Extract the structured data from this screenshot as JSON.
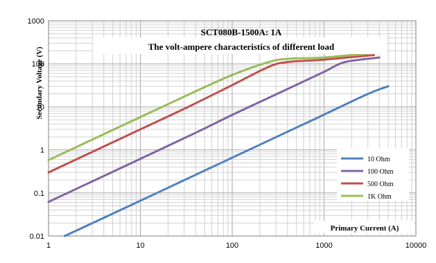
{
  "chart_data": {
    "type": "line",
    "title": "SCT080B-1500A: 1A",
    "subtitle": "The volt-ampere characteristics of different load",
    "xlabel": "Primary Current (A)",
    "ylabel": "Secondary Voltage (V)",
    "x_scale": "log",
    "y_scale": "log",
    "xlim": [
      1,
      10000
    ],
    "ylim": [
      0.01,
      1000
    ],
    "x_ticks": [
      "1",
      "10",
      "100",
      "1000",
      "10000"
    ],
    "y_ticks": [
      "0.01",
      "0.1",
      "1",
      "10",
      "100",
      "1000"
    ],
    "grid": true,
    "legend_position": "right",
    "series": [
      {
        "name": "10 Ohm",
        "color": "#4f81bd",
        "x": [
          1.5,
          10,
          50,
          100,
          500,
          1000,
          3000,
          5000
        ],
        "y": [
          0.01,
          0.066,
          0.33,
          0.66,
          3.3,
          6.6,
          20,
          30
        ]
      },
      {
        "name": "100 Ohm",
        "color": "#8064a2",
        "x": [
          1,
          10,
          40,
          100,
          400,
          1000,
          1700,
          4000
        ],
        "y": [
          0.062,
          0.62,
          2.5,
          6.5,
          26,
          65,
          110,
          140
        ]
      },
      {
        "name": "500 Ohm",
        "color": "#c0504d",
        "x": [
          1,
          10,
          30,
          100,
          250,
          400,
          1000,
          3500
        ],
        "y": [
          0.3,
          3,
          9,
          32,
          85,
          110,
          125,
          160
        ]
      },
      {
        "name": "1K Ohm",
        "color": "#9bbb59",
        "x": [
          1,
          10,
          40,
          100,
          250,
          400,
          1000,
          3000
        ],
        "y": [
          0.58,
          5.8,
          23,
          55,
          110,
          130,
          140,
          175
        ]
      }
    ]
  }
}
